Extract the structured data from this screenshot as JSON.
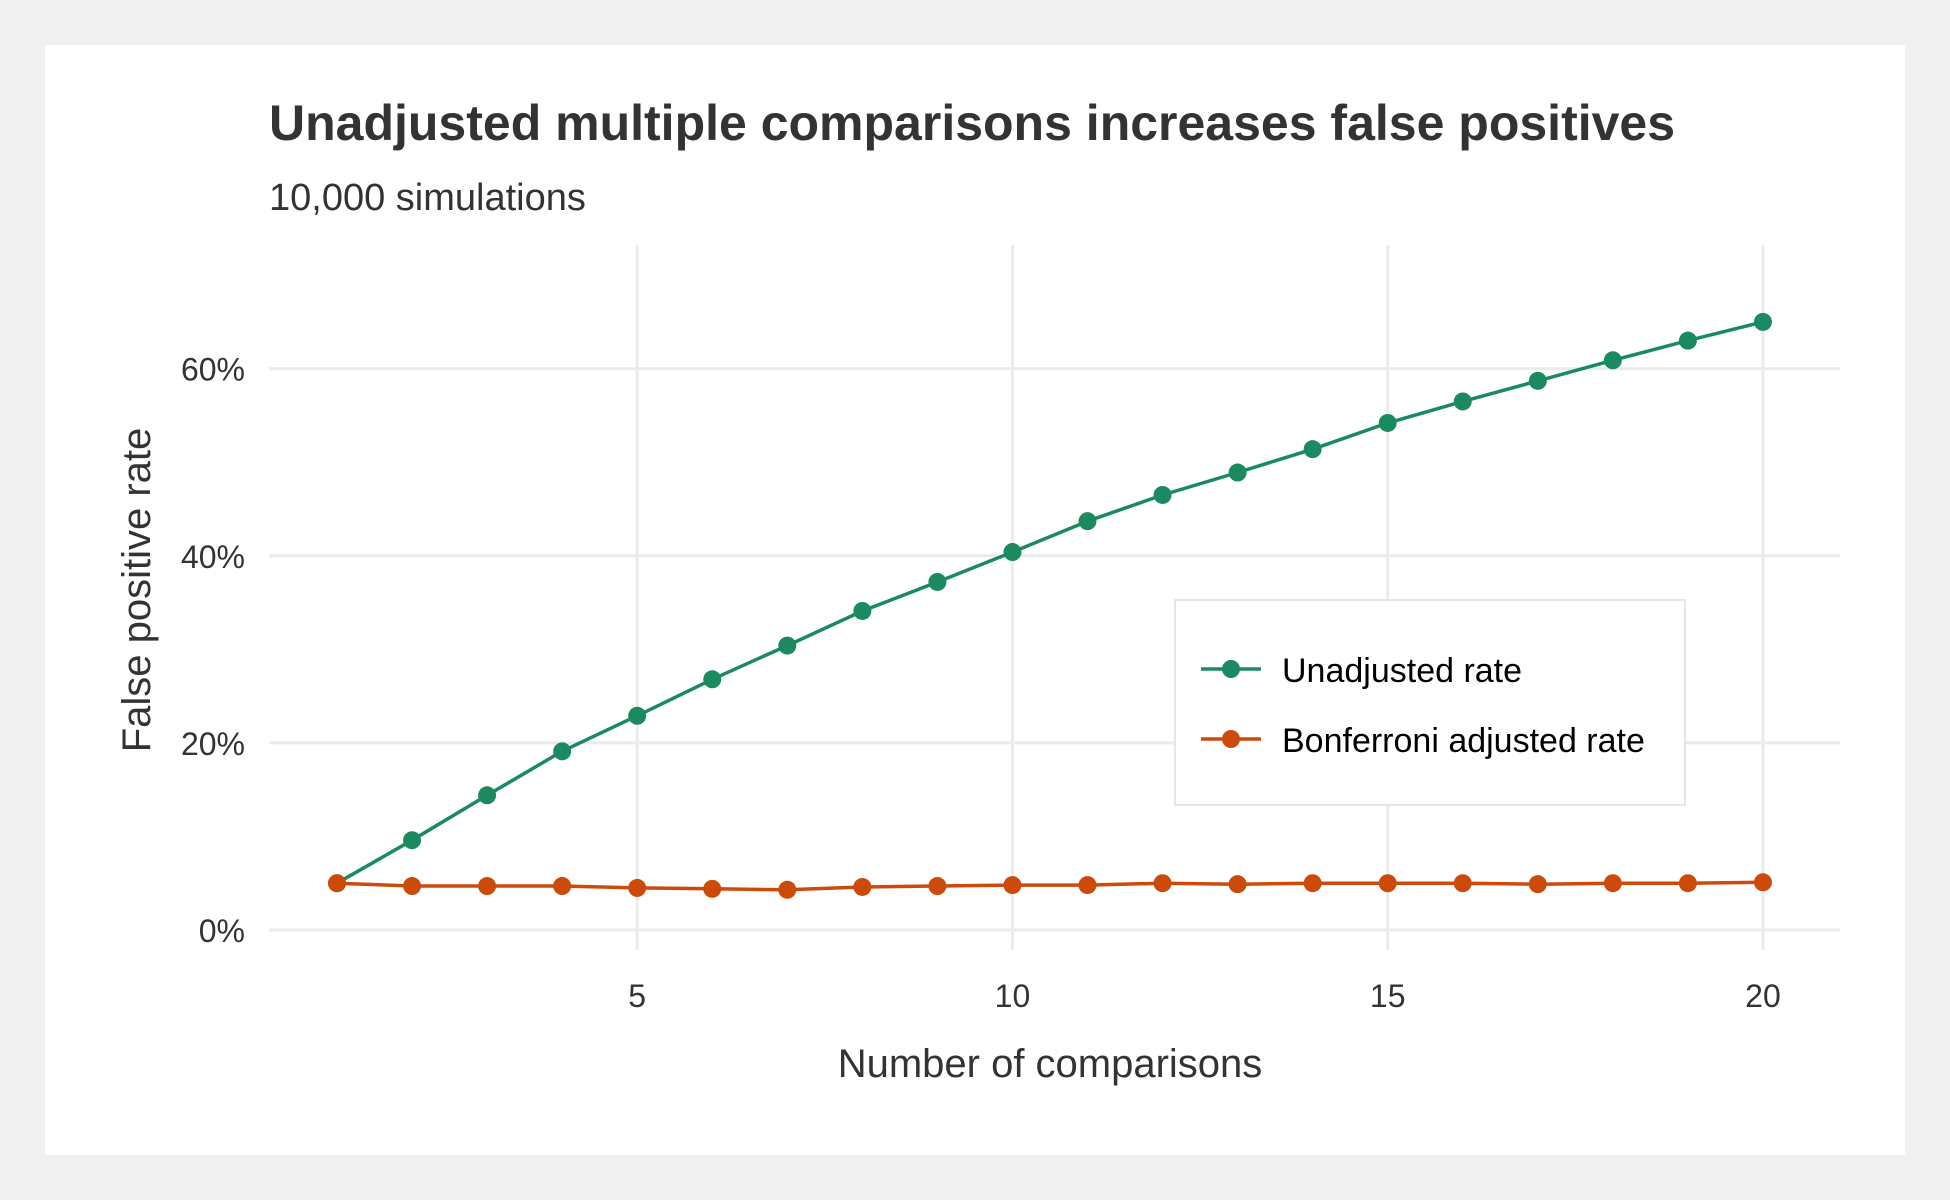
{
  "chart_data": {
    "type": "line",
    "title": "Unadjusted multiple comparisons increases false positives",
    "subtitle": "10,000 simulations",
    "xlabel": "Number of comparisons",
    "ylabel": "False positive rate",
    "xlim": [
      1,
      20
    ],
    "ylim": [
      0,
      0.65
    ],
    "x_ticks": [
      5,
      10,
      15,
      20
    ],
    "x_tick_labels": [
      "5",
      "10",
      "15",
      "20"
    ],
    "y_ticks": [
      0,
      0.2,
      0.4,
      0.6
    ],
    "y_tick_labels": [
      "0%",
      "20%",
      "40%",
      "60%"
    ],
    "grid": true,
    "legend_position": "center-right",
    "x": [
      1,
      2,
      3,
      4,
      5,
      6,
      7,
      8,
      9,
      10,
      11,
      12,
      13,
      14,
      15,
      16,
      17,
      18,
      19,
      20
    ],
    "series": [
      {
        "name": "Unadjusted rate",
        "color": "#1b8a60",
        "values": [
          0.05,
          0.096,
          0.144,
          0.191,
          0.229,
          0.268,
          0.304,
          0.341,
          0.372,
          0.404,
          0.437,
          0.465,
          0.489,
          0.514,
          0.542,
          0.565,
          0.587,
          0.609,
          0.63,
          0.65
        ]
      },
      {
        "name": "Bonferroni adjusted rate",
        "color": "#cc4a0a",
        "values": [
          0.05,
          0.047,
          0.047,
          0.047,
          0.045,
          0.044,
          0.043,
          0.046,
          0.047,
          0.048,
          0.048,
          0.05,
          0.049,
          0.05,
          0.05,
          0.05,
          0.049,
          0.05,
          0.05,
          0.051
        ]
      }
    ]
  }
}
